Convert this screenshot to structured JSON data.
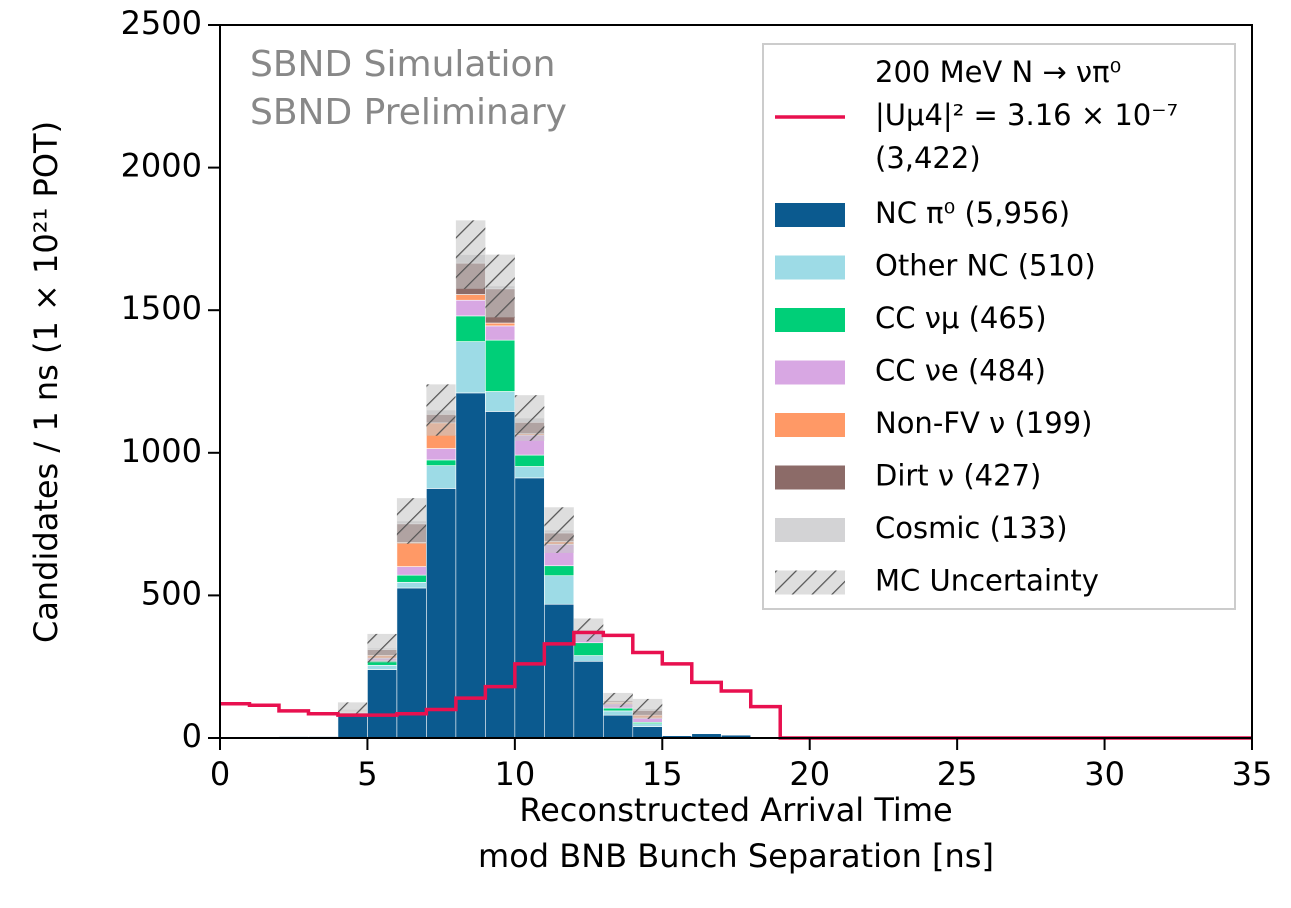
{
  "chart_data": {
    "type": "histogram",
    "annotations": [
      "SBND Simulation",
      "SBND Preliminary"
    ],
    "x_label": [
      "Reconstructed Arrival Time",
      "mod BNB Bunch Separation [ns]"
    ],
    "y_label": "Candidates / 1 ns (1 × 10²¹ POT)",
    "bins": [
      0,
      1,
      2,
      3,
      4,
      5,
      6,
      7,
      8,
      9,
      10,
      11,
      12,
      13,
      14,
      15,
      16,
      17,
      18,
      19,
      20,
      21,
      22,
      23,
      24,
      25,
      26,
      27,
      28,
      29,
      30,
      31,
      32,
      33,
      34,
      35
    ],
    "series": [
      {
        "name": "NC π⁰ (5,956)",
        "color": "#0b5a8f",
        "values": [
          0,
          0,
          5,
          5,
          80,
          240,
          526,
          875,
          1210,
          1145,
          912,
          469,
          269,
          80,
          40,
          8,
          15,
          10,
          0,
          0,
          0,
          0,
          0,
          0,
          0,
          0,
          0,
          0,
          0,
          0,
          0,
          0,
          0,
          0,
          0
        ]
      },
      {
        "name": "Other NC (510)",
        "color": "#9ddbe6",
        "values": [
          0,
          0,
          0,
          0,
          5,
          15,
          20,
          80,
          180,
          70,
          40,
          100,
          20,
          15,
          10,
          0,
          0,
          0,
          0,
          0,
          0,
          0,
          0,
          0,
          0,
          0,
          0,
          0,
          0,
          0,
          0,
          0,
          0,
          0,
          0
        ]
      },
      {
        "name": "CC νμ (465)",
        "color": "#00cf78",
        "values": [
          0,
          0,
          0,
          0,
          3,
          15,
          25,
          20,
          90,
          180,
          40,
          35,
          45,
          10,
          5,
          0,
          0,
          0,
          0,
          0,
          0,
          0,
          0,
          0,
          0,
          0,
          0,
          0,
          0,
          0,
          0,
          0,
          0,
          0,
          0
        ]
      },
      {
        "name": "CC νe (484)",
        "color": "#d8a7e3",
        "values": [
          0,
          0,
          0,
          0,
          3,
          10,
          30,
          40,
          55,
          50,
          70,
          75,
          30,
          15,
          15,
          0,
          0,
          0,
          0,
          0,
          0,
          0,
          0,
          0,
          0,
          0,
          0,
          0,
          0,
          0,
          0,
          0,
          0,
          0,
          0
        ]
      },
      {
        "name": "Non-FV ν (199)",
        "color": "#ff9966",
        "values": [
          0,
          0,
          0,
          0,
          3,
          10,
          85,
          90,
          20,
          10,
          5,
          10,
          5,
          5,
          10,
          0,
          0,
          0,
          0,
          0,
          0,
          0,
          0,
          0,
          0,
          0,
          0,
          0,
          0,
          0,
          0,
          0,
          0,
          0,
          0
        ]
      },
      {
        "name": "Dirt ν (427)",
        "color": "#8c6b68",
        "values": [
          0,
          0,
          0,
          0,
          3,
          20,
          65,
          30,
          110,
          120,
          40,
          30,
          5,
          5,
          17,
          0,
          0,
          0,
          0,
          0,
          0,
          0,
          0,
          0,
          0,
          0,
          0,
          0,
          0,
          0,
          0,
          0,
          0,
          0,
          0
        ]
      },
      {
        "name": "Cosmic (133)",
        "color": "#d3d3d5",
        "values": [
          0,
          0,
          0,
          0,
          3,
          5,
          10,
          15,
          30,
          10,
          15,
          10,
          5,
          3,
          5,
          0,
          0,
          0,
          0,
          0,
          0,
          0,
          0,
          0,
          0,
          0,
          0,
          0,
          0,
          0,
          0,
          0,
          0,
          0,
          0
        ]
      }
    ],
    "uncertainty": {
      "name": "MC Uncertainty",
      "values": [
        0,
        0,
        0,
        0,
        25,
        50,
        80,
        90,
        120,
        110,
        80,
        80,
        40,
        25,
        35,
        0,
        0,
        0,
        0,
        0,
        0,
        0,
        0,
        0,
        0,
        0,
        0,
        0,
        0,
        0,
        0,
        0,
        0,
        0,
        0
      ]
    },
    "signal": {
      "name": [
        "200 MeV N → νπ⁰",
        "|Uμ4|² = 3.16 × 10⁻⁷",
        "(3,422)"
      ],
      "color": "#e8104f",
      "values": [
        120,
        115,
        95,
        85,
        80,
        80,
        85,
        100,
        140,
        180,
        260,
        330,
        370,
        360,
        300,
        260,
        195,
        165,
        110,
        0,
        0,
        0,
        0,
        0,
        0,
        0,
        0,
        0,
        0,
        0,
        0,
        0,
        0,
        0,
        0
      ]
    },
    "xlim": [
      0,
      35
    ],
    "xticks": [
      0,
      5,
      10,
      15,
      20,
      25,
      30,
      35
    ],
    "ylim": [
      0,
      2500
    ],
    "yticks": [
      0,
      500,
      1000,
      1500,
      2000,
      2500
    ]
  }
}
